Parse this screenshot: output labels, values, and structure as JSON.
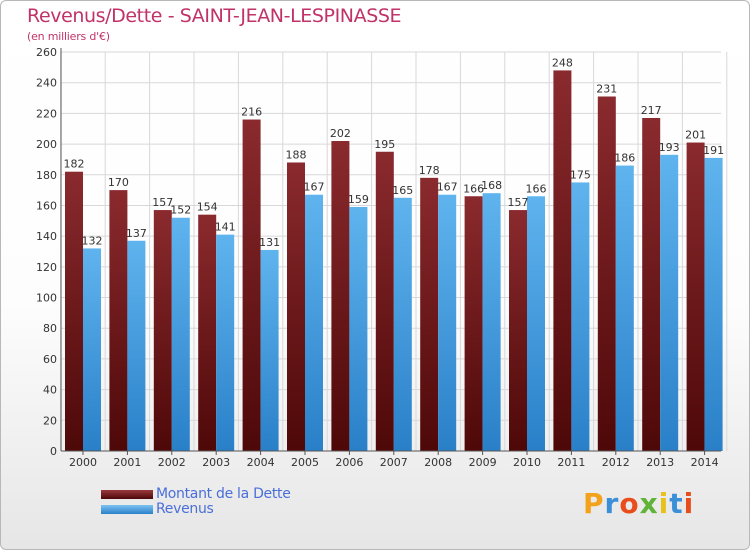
{
  "title": "Revenus/Dette - SAINT-JEAN-LESPINASSE",
  "subtitle": "(en milliers d'€)",
  "legend": [
    {
      "label": "Montant de la Dette",
      "color": "#7a1f24"
    },
    {
      "label": "Revenus",
      "color": "#4a9fe0"
    }
  ],
  "brand": {
    "text": "Proxiti"
  },
  "chart_data": {
    "type": "bar",
    "categories": [
      "2000",
      "2001",
      "2002",
      "2003",
      "2004",
      "2005",
      "2006",
      "2007",
      "2008",
      "2009",
      "2010",
      "2011",
      "2012",
      "2013",
      "2014"
    ],
    "series": [
      {
        "name": "Montant de la Dette",
        "color": "#7a1f24",
        "values": [
          182,
          170,
          157,
          154,
          216,
          188,
          202,
          195,
          178,
          166,
          157,
          248,
          231,
          217,
          201
        ]
      },
      {
        "name": "Revenus",
        "color": "#4a9fe0",
        "values": [
          132,
          137,
          152,
          141,
          131,
          167,
          159,
          165,
          167,
          168,
          166,
          175,
          186,
          193,
          191
        ]
      }
    ],
    "ylim": [
      0,
      260
    ],
    "yticks": [
      0,
      20,
      40,
      60,
      80,
      100,
      120,
      140,
      160,
      180,
      200,
      220,
      240,
      260
    ],
    "grid": true,
    "legend_position": "bottom-left"
  }
}
